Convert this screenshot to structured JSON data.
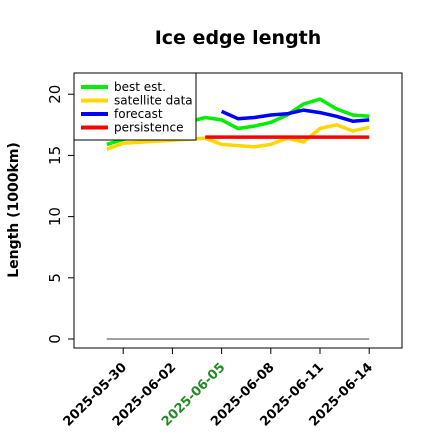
{
  "chart_data": {
    "type": "line",
    "title": "Ice edge length",
    "xlabel": "",
    "ylabel": "Length (1000km)",
    "ylim": [
      0,
      21
    ],
    "yticks": [
      0,
      5,
      10,
      15,
      20
    ],
    "xlim": [
      "2025-05-27",
      "2025-06-16"
    ],
    "xticks": [
      {
        "label": "2025-05-30",
        "color": "#000000"
      },
      {
        "label": "2025-06-02",
        "color": "#000000"
      },
      {
        "label": "2025-06-05",
        "color": "#228B22"
      },
      {
        "label": "2025-06-08",
        "color": "#000000"
      },
      {
        "label": "2025-06-11",
        "color": "#000000"
      },
      {
        "label": "2025-06-14",
        "color": "#000000"
      }
    ],
    "legend_position": "top-left",
    "baseline": {
      "y": 0,
      "from": "2025-05-29",
      "to": "2025-06-14",
      "color": "#808080"
    },
    "series": [
      {
        "name": "best est.",
        "color": "#00ee00",
        "points": [
          [
            "2025-05-29",
            15.9
          ],
          [
            "2025-05-30",
            16.3
          ],
          [
            "2025-06-04",
            18.1
          ],
          [
            "2025-06-05",
            17.9
          ],
          [
            "2025-06-06",
            17.2
          ],
          [
            "2025-06-07",
            17.4
          ],
          [
            "2025-06-08",
            17.7
          ],
          [
            "2025-06-09",
            18.3
          ],
          [
            "2025-06-10",
            19.2
          ],
          [
            "2025-06-11",
            19.6
          ],
          [
            "2025-06-12",
            18.8
          ],
          [
            "2025-06-13",
            18.3
          ],
          [
            "2025-06-14",
            18.2
          ]
        ]
      },
      {
        "name": "satellite data",
        "color": "#ffd700",
        "points": [
          [
            "2025-05-29",
            15.5
          ],
          [
            "2025-05-30",
            16.0
          ],
          [
            "2025-06-04",
            16.4
          ],
          [
            "2025-06-05",
            15.9
          ],
          [
            "2025-06-06",
            15.8
          ],
          [
            "2025-06-07",
            15.7
          ],
          [
            "2025-06-08",
            15.9
          ],
          [
            "2025-06-09",
            16.4
          ],
          [
            "2025-06-10",
            16.1
          ],
          [
            "2025-06-11",
            17.2
          ],
          [
            "2025-06-12",
            17.5
          ],
          [
            "2025-06-13",
            17.0
          ],
          [
            "2025-06-14",
            17.3
          ]
        ]
      },
      {
        "name": "forecast",
        "color": "#0000ff",
        "points": [
          [
            "2025-06-05",
            18.6
          ],
          [
            "2025-06-06",
            18.0
          ],
          [
            "2025-06-07",
            18.1
          ],
          [
            "2025-06-08",
            18.3
          ],
          [
            "2025-06-09",
            18.4
          ],
          [
            "2025-06-10",
            18.7
          ],
          [
            "2025-06-11",
            18.5
          ],
          [
            "2025-06-12",
            18.2
          ],
          [
            "2025-06-13",
            17.8
          ],
          [
            "2025-06-14",
            17.9
          ]
        ]
      },
      {
        "name": "persistence",
        "color": "#ff0000",
        "points": [
          [
            "2025-06-04",
            16.5
          ],
          [
            "2025-06-14",
            16.5
          ]
        ]
      }
    ]
  }
}
